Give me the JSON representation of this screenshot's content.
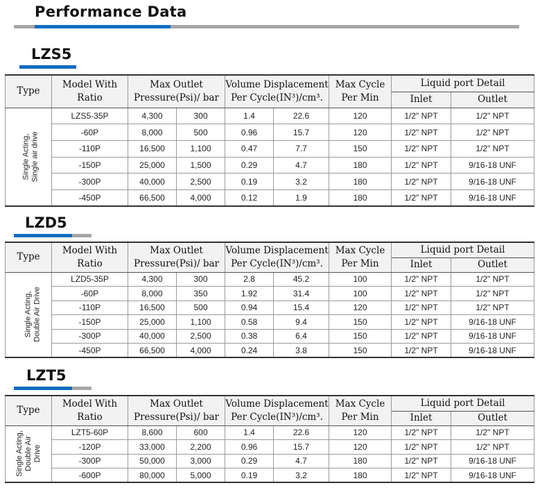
{
  "page_title": "Performance Data",
  "header": {
    "type": "Type",
    "model_1": "Model With",
    "model_2": "Ratio",
    "pressure_1": "Max Outlet",
    "pressure_2": "Pressure(Psi)/ bar",
    "volume_1": "Volume Displacement",
    "volume_2": "Per Cycle(IN³)/cm³.",
    "cycle_1": "Max Cycle",
    "cycle_2": "Per Min",
    "liquid": "Liquid port Detail",
    "inlet": "Inlet",
    "outlet": "Outlet"
  },
  "sections": [
    {
      "title": "LZS5",
      "type_line1": "Single Acting,",
      "type_line2": "Single air drive",
      "rows": [
        [
          "LZS5-35P",
          "4,300",
          "300",
          "1.4",
          "22.6",
          "120",
          "1/2\" NPT",
          "1/2\" NPT"
        ],
        [
          "-60P",
          "8,000",
          "500",
          "0.96",
          "15.7",
          "120",
          "1/2\" NPT",
          "1/2\" NPT"
        ],
        [
          "-110P",
          "16,500",
          "1,100",
          "0.47",
          "7.7",
          "150",
          "1/2\" NPT",
          "1/2\" NPT"
        ],
        [
          "-150P",
          "25,000",
          "1,500",
          "0.29",
          "4.7",
          "180",
          "1/2\" NPT",
          "9/16-18 UNF"
        ],
        [
          "-300P",
          "40,000",
          "2,500",
          "0.19",
          "3.2",
          "180",
          "1/2\" NPT",
          "9/16-18 UNF"
        ],
        [
          "-450P",
          "66,500",
          "4,000",
          "0.12",
          "1.9",
          "180",
          "1/2\" NPT",
          "9/16-18 UNF"
        ]
      ]
    },
    {
      "title": "LZD5",
      "type_line1": "Single Acting,",
      "type_line2": "Double Air Drive",
      "rows": [
        [
          "LZD5-35P",
          "4,300",
          "300",
          "2.8",
          "45.2",
          "100",
          "1/2\" NPT",
          "1/2\" NPT"
        ],
        [
          "-60P",
          "8,000",
          "350",
          "1.92",
          "31.4",
          "100",
          "1/2\" NPT",
          "1/2\" NPT"
        ],
        [
          "-110P",
          "16,500",
          "500",
          "0.94",
          "15.4",
          "120",
          "1/2\" NPT",
          "1/2\" NPT"
        ],
        [
          "-150P",
          "25,000",
          "1,100",
          "0.58",
          "9.4",
          "150",
          "1/2\" NPT",
          "9/16-18 UNF"
        ],
        [
          "-300P",
          "40,000",
          "2,500",
          "0.38",
          "6.4",
          "150",
          "1/2\" NPT",
          "9/16-18 UNF"
        ],
        [
          "-450P",
          "66,500",
          "4,000",
          "0.24",
          "3.8",
          "150",
          "1/2\" NPT",
          "9/16-18 UNF"
        ]
      ]
    },
    {
      "title": "LZT5",
      "type_line1": "Single Acting,",
      "type_line2": "Double Air",
      "type_line3": "Drive",
      "rows": [
        [
          "LZT5-60P",
          "8,600",
          "600",
          "1.4",
          "22.6",
          "120",
          "1/2\" NPT",
          "1/2\" NPT"
        ],
        [
          "-120P",
          "33,000",
          "2,200",
          "0.96",
          "15.7",
          "120",
          "1/2\" NPT",
          "1/2\" NPT"
        ],
        [
          "-300P",
          "50,000",
          "3,000",
          "0.29",
          "4.7",
          "180",
          "1/2\" NPT",
          "9/16-18 UNF"
        ],
        [
          "-600P",
          "80,000",
          "5,000",
          "0.19",
          "3.2",
          "180",
          "1/2\" NPT",
          "9/16-18 UNF"
        ]
      ]
    }
  ]
}
